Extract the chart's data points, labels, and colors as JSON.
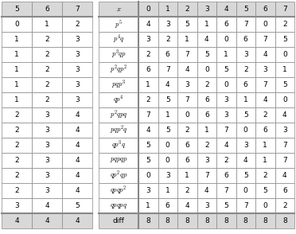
{
  "left_header": [
    "5",
    "6",
    "7"
  ],
  "left_rows": [
    [
      "0",
      "1",
      "2"
    ],
    [
      "1",
      "2",
      "3"
    ],
    [
      "1",
      "2",
      "3"
    ],
    [
      "1",
      "2",
      "3"
    ],
    [
      "1",
      "2",
      "3"
    ],
    [
      "1",
      "2",
      "3"
    ],
    [
      "2",
      "3",
      "4"
    ],
    [
      "2",
      "3",
      "4"
    ],
    [
      "2",
      "3",
      "4"
    ],
    [
      "2",
      "3",
      "4"
    ],
    [
      "2",
      "3",
      "4"
    ],
    [
      "2",
      "3",
      "4"
    ],
    [
      "3",
      "4",
      "5"
    ]
  ],
  "left_footer": [
    "4",
    "4",
    "4"
  ],
  "right_header": [
    "x",
    "0",
    "1",
    "2",
    "3",
    "4",
    "5",
    "6",
    "7"
  ],
  "right_rows": [
    [
      "p^5",
      "4",
      "3",
      "5",
      "1",
      "6",
      "7",
      "0",
      "2"
    ],
    [
      "p^4q",
      "3",
      "2",
      "1",
      "4",
      "0",
      "6",
      "7",
      "5"
    ],
    [
      "p^3qp",
      "2",
      "6",
      "7",
      "5",
      "1",
      "3",
      "4",
      "0"
    ],
    [
      "p^2qp^2",
      "6",
      "7",
      "4",
      "0",
      "5",
      "2",
      "3",
      "1"
    ],
    [
      "pqp^3",
      "1",
      "4",
      "3",
      "2",
      "0",
      "6",
      "7",
      "5"
    ],
    [
      "qp^4",
      "2",
      "5",
      "7",
      "6",
      "3",
      "1",
      "4",
      "0"
    ],
    [
      "p^2qpq",
      "7",
      "1",
      "0",
      "6",
      "3",
      "5",
      "2",
      "4"
    ],
    [
      "pqp^2q",
      "4",
      "5",
      "2",
      "1",
      "7",
      "0",
      "6",
      "3"
    ],
    [
      "qp^3q",
      "5",
      "0",
      "6",
      "2",
      "4",
      "3",
      "1",
      "7"
    ],
    [
      "pqpqp",
      "5",
      "0",
      "6",
      "3",
      "2",
      "4",
      "1",
      "7"
    ],
    [
      "qp^2qp",
      "0",
      "3",
      "1",
      "7",
      "6",
      "5",
      "2",
      "4"
    ],
    [
      "qpqp^2",
      "3",
      "1",
      "2",
      "4",
      "7",
      "0",
      "5",
      "6"
    ],
    [
      "qpqpq",
      "1",
      "6",
      "4",
      "3",
      "5",
      "7",
      "0",
      "2"
    ]
  ],
  "right_footer": [
    "diff",
    "8",
    "8",
    "8",
    "8",
    "8",
    "8",
    "8",
    "8"
  ],
  "bg_color": "#ffffff",
  "header_bg": "#d8d8d8",
  "footer_bg": "#d8d8d8",
  "grid_color": "#888888",
  "text_color": "#000000",
  "font_size": 6.5
}
